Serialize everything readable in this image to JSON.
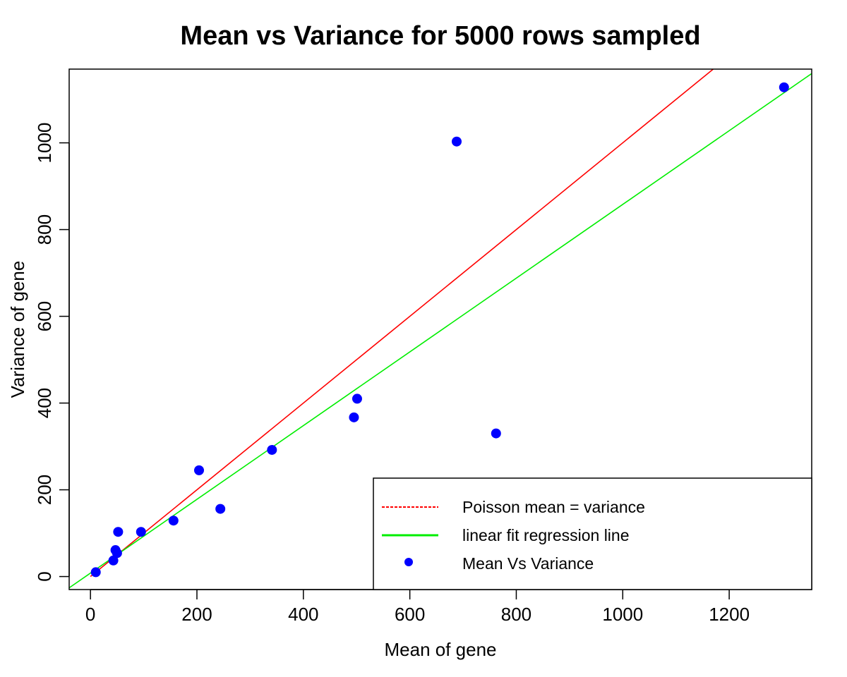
{
  "chart_data": {
    "type": "scatter",
    "title": "Mean vs Variance for 5000 rows sampled",
    "xlabel": "Mean of gene",
    "ylabel": "Variance of gene",
    "xlim": [
      -40,
      1355
    ],
    "ylim": [
      -30,
      1170
    ],
    "xticks": [
      0,
      200,
      400,
      600,
      800,
      1000,
      1200
    ],
    "yticks": [
      0,
      200,
      400,
      600,
      800,
      1000
    ],
    "grid": false,
    "legend_position": "bottom-right",
    "series": [
      {
        "name": "Mean Vs Variance",
        "kind": "points",
        "color": "#0000ff",
        "points": [
          {
            "x": 10,
            "y": 10
          },
          {
            "x": 43,
            "y": 37
          },
          {
            "x": 47,
            "y": 61
          },
          {
            "x": 50,
            "y": 54
          },
          {
            "x": 52,
            "y": 103
          },
          {
            "x": 95,
            "y": 103
          },
          {
            "x": 156,
            "y": 129
          },
          {
            "x": 204,
            "y": 245
          },
          {
            "x": 244,
            "y": 156
          },
          {
            "x": 341,
            "y": 292
          },
          {
            "x": 495,
            "y": 367
          },
          {
            "x": 501,
            "y": 410
          },
          {
            "x": 688,
            "y": 1003
          },
          {
            "x": 762,
            "y": 330
          },
          {
            "x": 1303,
            "y": 1128
          }
        ]
      },
      {
        "name": "Poisson mean = variance",
        "kind": "line",
        "color": "#ff0000",
        "intercept": 0,
        "slope": 1,
        "x_start": 0
      },
      {
        "name": "linear fit regression line",
        "kind": "line",
        "color": "#00ee00",
        "intercept": 8,
        "slope": 0.85
      }
    ]
  }
}
